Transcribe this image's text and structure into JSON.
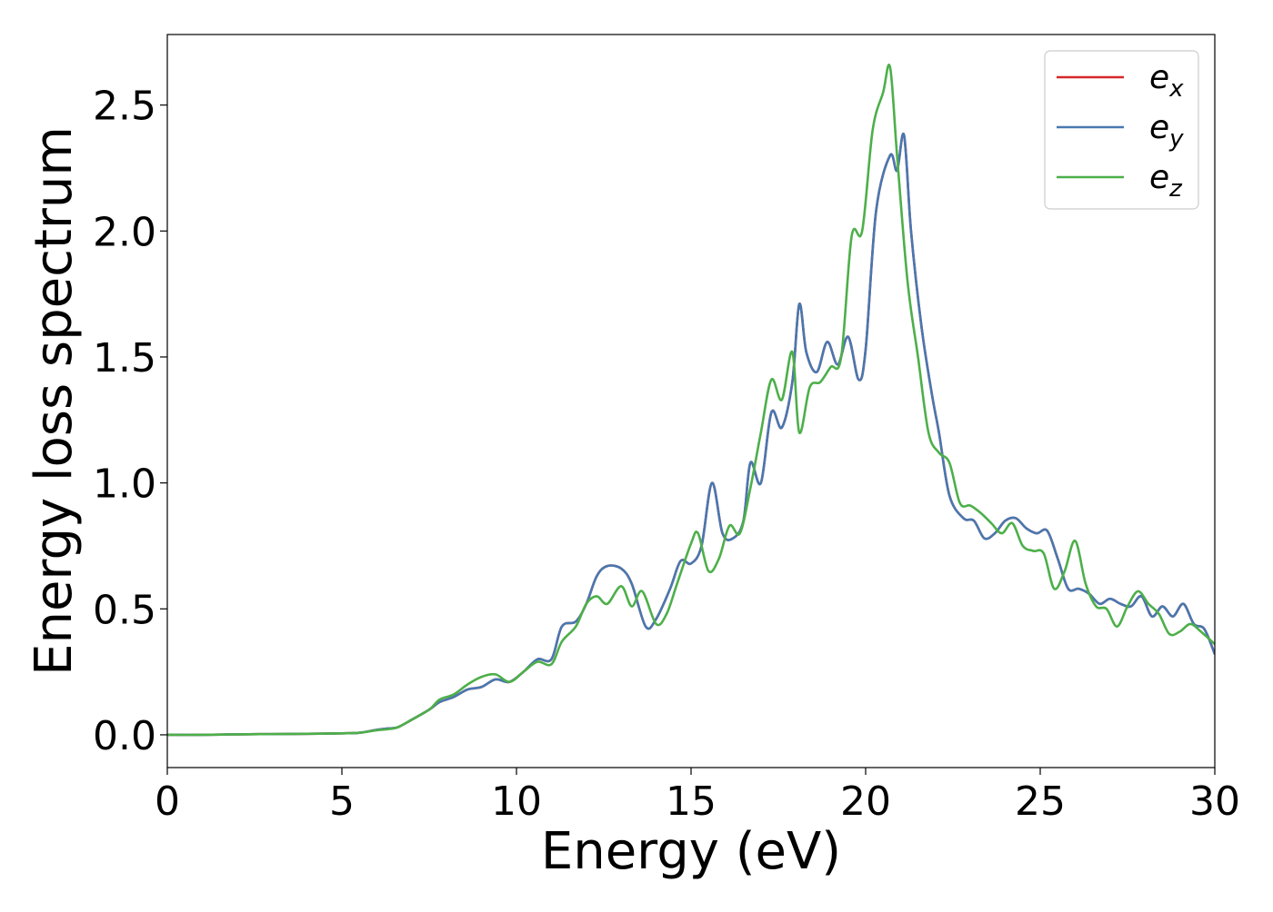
{
  "chart_data": {
    "type": "line",
    "xlabel": "Energy (eV)",
    "ylabel": "Energy loss spectrum",
    "xlim": [
      0,
      30
    ],
    "ylim": [
      -0.13,
      2.78
    ],
    "xticks": [
      0,
      5,
      10,
      15,
      20,
      25,
      30
    ],
    "xtick_labels": [
      "0",
      "5",
      "10",
      "15",
      "20",
      "25",
      "30"
    ],
    "yticks": [
      0.0,
      0.5,
      1.0,
      1.5,
      2.0,
      2.5
    ],
    "ytick_labels": [
      "0.0",
      "0.5",
      "1.0",
      "1.5",
      "2.0",
      "2.5"
    ],
    "grid": false,
    "legend_position": "top-right",
    "series": [
      {
        "name": "e_x",
        "label_base": "e",
        "label_sub": "x",
        "color": "#d62728",
        "x": [
          0,
          1,
          2,
          3,
          4,
          5,
          5.5,
          6,
          6.3,
          6.6,
          7,
          7.5,
          7.8,
          8.2,
          8.6,
          9,
          9.4,
          9.8,
          10.2,
          10.6,
          11,
          11.3,
          11.7,
          12,
          12.3,
          12.6,
          13,
          13.3,
          13.7,
          14,
          14.4,
          14.7,
          15,
          15.3,
          15.6,
          15.9,
          16.2,
          16.5,
          16.7,
          17,
          17.3,
          17.6,
          17.9,
          18.1,
          18.3,
          18.6,
          18.9,
          19.2,
          19.5,
          19.8,
          20,
          20.3,
          20.7,
          20.9,
          21.1,
          21.3,
          21.6,
          21.9,
          22.1,
          22.4,
          22.8,
          23.1,
          23.4,
          23.7,
          24,
          24.3,
          24.6,
          24.9,
          25.2,
          25.5,
          25.8,
          26.1,
          26.4,
          26.7,
          27,
          27.3,
          27.6,
          27.9,
          28.2,
          28.5,
          28.8,
          29.1,
          29.4,
          29.7,
          30
        ],
        "values": [
          0,
          0,
          0.002,
          0.003,
          0.004,
          0.006,
          0.008,
          0.02,
          0.025,
          0.03,
          0.06,
          0.1,
          0.13,
          0.15,
          0.18,
          0.19,
          0.22,
          0.21,
          0.25,
          0.3,
          0.3,
          0.43,
          0.45,
          0.52,
          0.63,
          0.67,
          0.66,
          0.6,
          0.43,
          0.46,
          0.58,
          0.69,
          0.68,
          0.75,
          1.0,
          0.8,
          0.78,
          0.85,
          1.08,
          1.0,
          1.28,
          1.22,
          1.4,
          1.71,
          1.52,
          1.44,
          1.56,
          1.47,
          1.58,
          1.41,
          1.53,
          2.08,
          2.3,
          2.24,
          2.38,
          2.0,
          1.62,
          1.35,
          1.2,
          0.95,
          0.86,
          0.85,
          0.78,
          0.8,
          0.85,
          0.86,
          0.82,
          0.8,
          0.81,
          0.7,
          0.58,
          0.58,
          0.56,
          0.52,
          0.54,
          0.52,
          0.51,
          0.55,
          0.47,
          0.51,
          0.47,
          0.52,
          0.44,
          0.42,
          0.32
        ]
      },
      {
        "name": "e_y",
        "label_base": "e",
        "label_sub": "y",
        "color": "#4878b0",
        "x": [
          0,
          1,
          2,
          3,
          4,
          5,
          5.5,
          6,
          6.3,
          6.6,
          7,
          7.5,
          7.8,
          8.2,
          8.6,
          9,
          9.4,
          9.8,
          10.2,
          10.6,
          11,
          11.3,
          11.7,
          12,
          12.3,
          12.6,
          13,
          13.3,
          13.7,
          14,
          14.4,
          14.7,
          15,
          15.3,
          15.6,
          15.9,
          16.2,
          16.5,
          16.7,
          17,
          17.3,
          17.6,
          17.9,
          18.1,
          18.3,
          18.6,
          18.9,
          19.2,
          19.5,
          19.8,
          20,
          20.3,
          20.7,
          20.9,
          21.1,
          21.3,
          21.6,
          21.9,
          22.1,
          22.4,
          22.8,
          23.1,
          23.4,
          23.7,
          24,
          24.3,
          24.6,
          24.9,
          25.2,
          25.5,
          25.8,
          26.1,
          26.4,
          26.7,
          27,
          27.3,
          27.6,
          27.9,
          28.2,
          28.5,
          28.8,
          29.1,
          29.4,
          29.7,
          30
        ],
        "values": [
          0,
          0,
          0.002,
          0.003,
          0.004,
          0.006,
          0.008,
          0.02,
          0.025,
          0.03,
          0.06,
          0.1,
          0.13,
          0.15,
          0.18,
          0.19,
          0.22,
          0.21,
          0.25,
          0.3,
          0.3,
          0.43,
          0.45,
          0.52,
          0.63,
          0.67,
          0.66,
          0.6,
          0.43,
          0.46,
          0.58,
          0.69,
          0.68,
          0.75,
          1.0,
          0.8,
          0.78,
          0.85,
          1.08,
          1.0,
          1.28,
          1.22,
          1.4,
          1.71,
          1.52,
          1.44,
          1.56,
          1.47,
          1.58,
          1.41,
          1.53,
          2.08,
          2.3,
          2.24,
          2.38,
          2.0,
          1.62,
          1.35,
          1.2,
          0.95,
          0.86,
          0.85,
          0.78,
          0.8,
          0.85,
          0.86,
          0.82,
          0.8,
          0.81,
          0.7,
          0.58,
          0.58,
          0.56,
          0.52,
          0.54,
          0.52,
          0.51,
          0.55,
          0.47,
          0.51,
          0.47,
          0.52,
          0.44,
          0.42,
          0.32
        ]
      },
      {
        "name": "e_z",
        "label_base": "e",
        "label_sub": "z",
        "color": "#4daf4a",
        "x": [
          0,
          1,
          2,
          3,
          4,
          5,
          5.5,
          6,
          6.3,
          6.6,
          7,
          7.5,
          7.8,
          8.2,
          8.6,
          9,
          9.4,
          9.8,
          10.2,
          10.6,
          11,
          11.3,
          11.7,
          12,
          12.3,
          12.6,
          13,
          13.3,
          13.6,
          14,
          14.3,
          14.6,
          15,
          15.2,
          15.5,
          15.8,
          16.1,
          16.4,
          16.7,
          17,
          17.3,
          17.6,
          17.9,
          18.1,
          18.4,
          18.7,
          19,
          19.3,
          19.6,
          19.9,
          20.2,
          20.5,
          20.7,
          20.9,
          21.2,
          21.5,
          21.8,
          22.1,
          22.4,
          22.7,
          23,
          23.3,
          23.6,
          23.9,
          24.2,
          24.5,
          24.8,
          25.1,
          25.4,
          25.7,
          26,
          26.3,
          26.6,
          26.9,
          27.2,
          27.5,
          27.8,
          28.1,
          28.4,
          28.7,
          29,
          29.3,
          29.6,
          30
        ],
        "values": [
          0,
          0,
          0.002,
          0.003,
          0.004,
          0.006,
          0.008,
          0.018,
          0.022,
          0.03,
          0.06,
          0.1,
          0.14,
          0.16,
          0.2,
          0.23,
          0.24,
          0.21,
          0.25,
          0.29,
          0.28,
          0.37,
          0.43,
          0.52,
          0.55,
          0.52,
          0.59,
          0.51,
          0.57,
          0.44,
          0.48,
          0.6,
          0.76,
          0.8,
          0.65,
          0.7,
          0.83,
          0.8,
          0.98,
          1.2,
          1.41,
          1.33,
          1.52,
          1.2,
          1.38,
          1.4,
          1.46,
          1.5,
          1.98,
          2.0,
          2.4,
          2.55,
          2.65,
          2.3,
          1.8,
          1.5,
          1.2,
          1.12,
          1.08,
          0.92,
          0.91,
          0.88,
          0.84,
          0.8,
          0.84,
          0.75,
          0.73,
          0.72,
          0.58,
          0.65,
          0.77,
          0.6,
          0.51,
          0.5,
          0.43,
          0.51,
          0.57,
          0.52,
          0.48,
          0.4,
          0.41,
          0.44,
          0.41,
          0.36
        ]
      }
    ]
  }
}
